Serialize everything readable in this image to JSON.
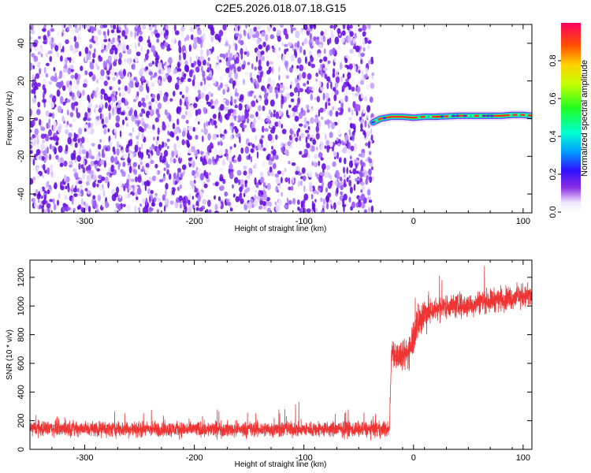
{
  "title": "C2E5.2026.018.07.18.G15",
  "chart_data": [
    {
      "type": "heatmap",
      "xlabel": "Height of straight line (km)",
      "ylabel": "Frequency (Hz)",
      "xlim": [
        -350,
        108
      ],
      "ylim": [
        -50,
        50
      ],
      "xticks": [
        -300,
        -200,
        -100,
        0,
        100
      ],
      "yticks": [
        -40,
        -20,
        0,
        20,
        40
      ],
      "noise_region_x": [
        -350,
        -37
      ],
      "signal_region_x": [
        -37,
        108
      ],
      "signal_track": {
        "x": [
          -37,
          -30,
          -20,
          -10,
          0,
          10,
          20,
          40,
          60,
          80,
          90,
          100,
          108
        ],
        "frequency": [
          -2,
          0,
          1,
          1,
          0.5,
          1,
          1,
          1.5,
          1.5,
          1.5,
          2,
          2,
          1.5
        ]
      },
      "colorbar": {
        "label": "Normalized spectral amplitude",
        "range": [
          0,
          1
        ],
        "ticks": [
          0.0,
          0.2,
          0.4,
          0.6,
          0.8
        ],
        "tick_labels": [
          "0.0",
          "0.2",
          "0.4",
          "0.6",
          "0.8"
        ]
      },
      "grid": false
    },
    {
      "type": "line",
      "xlabel": "Height of straight line (km)",
      "ylabel": "SNR (10 * v/v)",
      "xlim": [
        -350,
        108
      ],
      "ylim": [
        0,
        1320
      ],
      "xticks": [
        -300,
        -200,
        -100,
        0,
        100
      ],
      "yticks": [
        0,
        200,
        400,
        600,
        800,
        1000,
        1200
      ],
      "color": "#ef3434",
      "series": [
        {
          "x": [
            -350,
            -300,
            -250,
            -200,
            -150,
            -100,
            -50,
            -22,
            -20,
            -15,
            -10,
            -5,
            0,
            5,
            10,
            15,
            20,
            30,
            40,
            50,
            60,
            70,
            80,
            90,
            100,
            108
          ],
          "values": [
            150,
            145,
            140,
            140,
            140,
            140,
            140,
            140,
            700,
            650,
            640,
            680,
            800,
            900,
            950,
            960,
            980,
            1000,
            1000,
            1000,
            1030,
            1040,
            1050,
            1060,
            1070,
            1070
          ],
          "spread": [
            80,
            80,
            80,
            80,
            80,
            80,
            80,
            80,
            150,
            150,
            150,
            180,
            200,
            200,
            200,
            150,
            120,
            120,
            120,
            120,
            120,
            120,
            120,
            120,
            120,
            120
          ]
        }
      ],
      "grid": false
    }
  ]
}
